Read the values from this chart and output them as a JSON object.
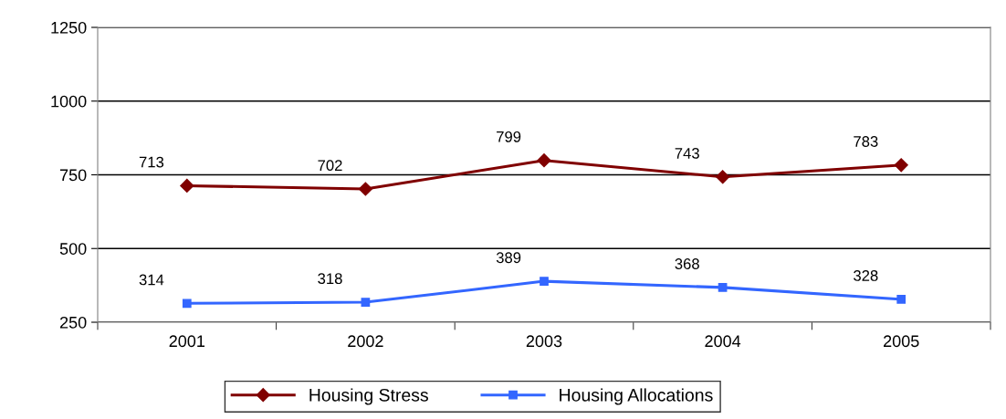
{
  "chart_data": {
    "type": "line",
    "categories": [
      "2001",
      "2002",
      "2003",
      "2004",
      "2005"
    ],
    "series": [
      {
        "name": "Housing Stress",
        "color": "#800000",
        "values": [
          713,
          702,
          799,
          743,
          783
        ],
        "marker": "diamond"
      },
      {
        "name": "Housing Allocations",
        "color": "#3366ff",
        "values": [
          314,
          318,
          389,
          368,
          328
        ],
        "marker": "square"
      }
    ],
    "ylim": [
      250,
      1250
    ],
    "yticks": [
      250,
      500,
      750,
      1000,
      1250
    ],
    "grid": "y",
    "legend": "bottom",
    "data_labels": true,
    "line_style": "solid"
  }
}
